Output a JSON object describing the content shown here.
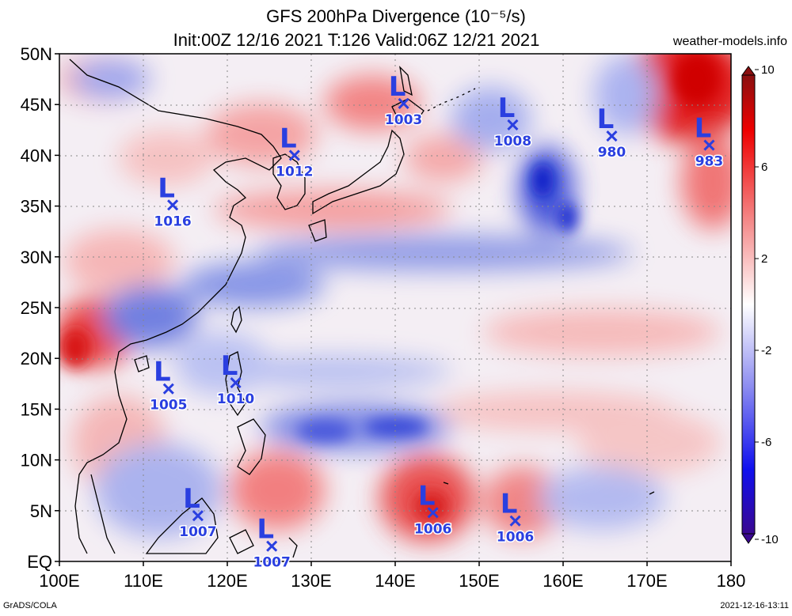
{
  "header": {
    "title_line1": "GFS 200hPa Divergence (10⁻⁵/s)",
    "title_line2": "Init:00Z 12/16 2021 T:126 Valid:06Z 12/21 2021",
    "site": "weather-models.info"
  },
  "footer": {
    "software": "GrADS/COLA",
    "generated": "2021-12-16-13:11"
  },
  "chart_data": {
    "type": "heatmap",
    "variable": "200hPa Divergence",
    "units": "10^-5/s",
    "lon_range": [
      100,
      180
    ],
    "lat_range": [
      0,
      50
    ],
    "x_ticks": [
      "100E",
      "110E",
      "120E",
      "130E",
      "140E",
      "150E",
      "160E",
      "170E",
      "180"
    ],
    "y_ticks": [
      "EQ",
      "5N",
      "10N",
      "15N",
      "20N",
      "25N",
      "30N",
      "35N",
      "40N",
      "45N",
      "50N"
    ],
    "colorbar": {
      "min": -10,
      "max": 10,
      "tick_labels": [
        "10",
        "6",
        "2",
        "-2",
        "-6",
        "-10"
      ],
      "tick_values": [
        10,
        6,
        2,
        -2,
        -6,
        -10
      ]
    },
    "lows": [
      {
        "pressure": "1003",
        "lon": 141.0,
        "lat": 45.1
      },
      {
        "pressure": "1012",
        "lon": 128.0,
        "lat": 40.0
      },
      {
        "pressure": "1016",
        "lon": 113.5,
        "lat": 35.1
      },
      {
        "pressure": "1008",
        "lon": 154.0,
        "lat": 43.0
      },
      {
        "pressure": "980",
        "lon": 165.8,
        "lat": 41.9
      },
      {
        "pressure": "983",
        "lon": 177.4,
        "lat": 41.0
      },
      {
        "pressure": "1005",
        "lon": 113.0,
        "lat": 17.0
      },
      {
        "pressure": "1010",
        "lon": 121.0,
        "lat": 17.6
      },
      {
        "pressure": "1007",
        "lon": 116.5,
        "lat": 4.5
      },
      {
        "pressure": "1007",
        "lon": 125.3,
        "lat": 1.5
      },
      {
        "pressure": "1006",
        "lon": 144.5,
        "lat": 4.8
      },
      {
        "pressure": "1006",
        "lon": 154.3,
        "lat": 4.0
      }
    ],
    "features": [
      {
        "name": "jet divergence band",
        "sign": "negative",
        "description": "blue convergence band from northern Vietnam across Taiwan to ~31N 170E"
      },
      {
        "name": "strong divergence",
        "sign": "positive",
        "region": "170E-180, 38N-50N"
      },
      {
        "name": "divergence near Japan",
        "sign": "positive",
        "region": "125E-145E, 32N-37N"
      }
    ]
  }
}
